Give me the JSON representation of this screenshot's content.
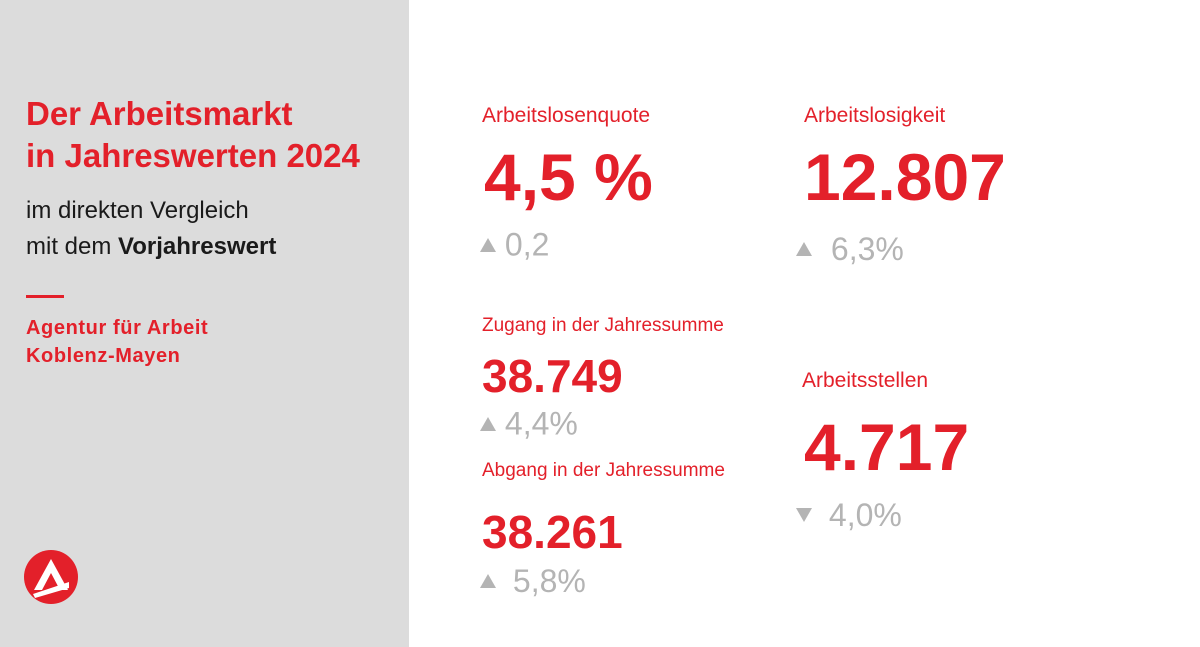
{
  "sidebar": {
    "title_line1": "Der Arbeitsmarkt",
    "title_line2": "in Jahreswerten 2024",
    "subtitle_line1": "im direkten Vergleich",
    "subtitle_line2_prefix": "mit dem",
    "subtitle_line2_bold": "Vorjahreswert",
    "agency_line1": "Agentur für Arbeit",
    "agency_line2": "Koblenz-Mayen",
    "logo_icon": "arbeitsagentur-logo-icon"
  },
  "colors": {
    "accent": "#e3202a",
    "sidebar_bg": "#dcdcdc",
    "change_gray": "#b4b4b4"
  },
  "metrics": {
    "arbeitslosenquote": {
      "label": "Arbeitslosenquote",
      "value": "4,5 %",
      "direction": "up",
      "change": "0,2"
    },
    "arbeitslosigkeit": {
      "label": "Arbeitslosigkeit",
      "value": "12.807",
      "direction": "up",
      "change": "6,3%"
    },
    "zugang": {
      "label": "Zugang in der Jahressumme",
      "value": "38.749",
      "direction": "up",
      "change": "4,4%"
    },
    "abgang": {
      "label": "Abgang in der Jahressumme",
      "value": "38.261",
      "direction": "up",
      "change": "5,8%"
    },
    "arbeitsstellen": {
      "label": "Arbeitsstellen",
      "value": "4.717",
      "direction": "down",
      "change": "4,0%"
    }
  }
}
